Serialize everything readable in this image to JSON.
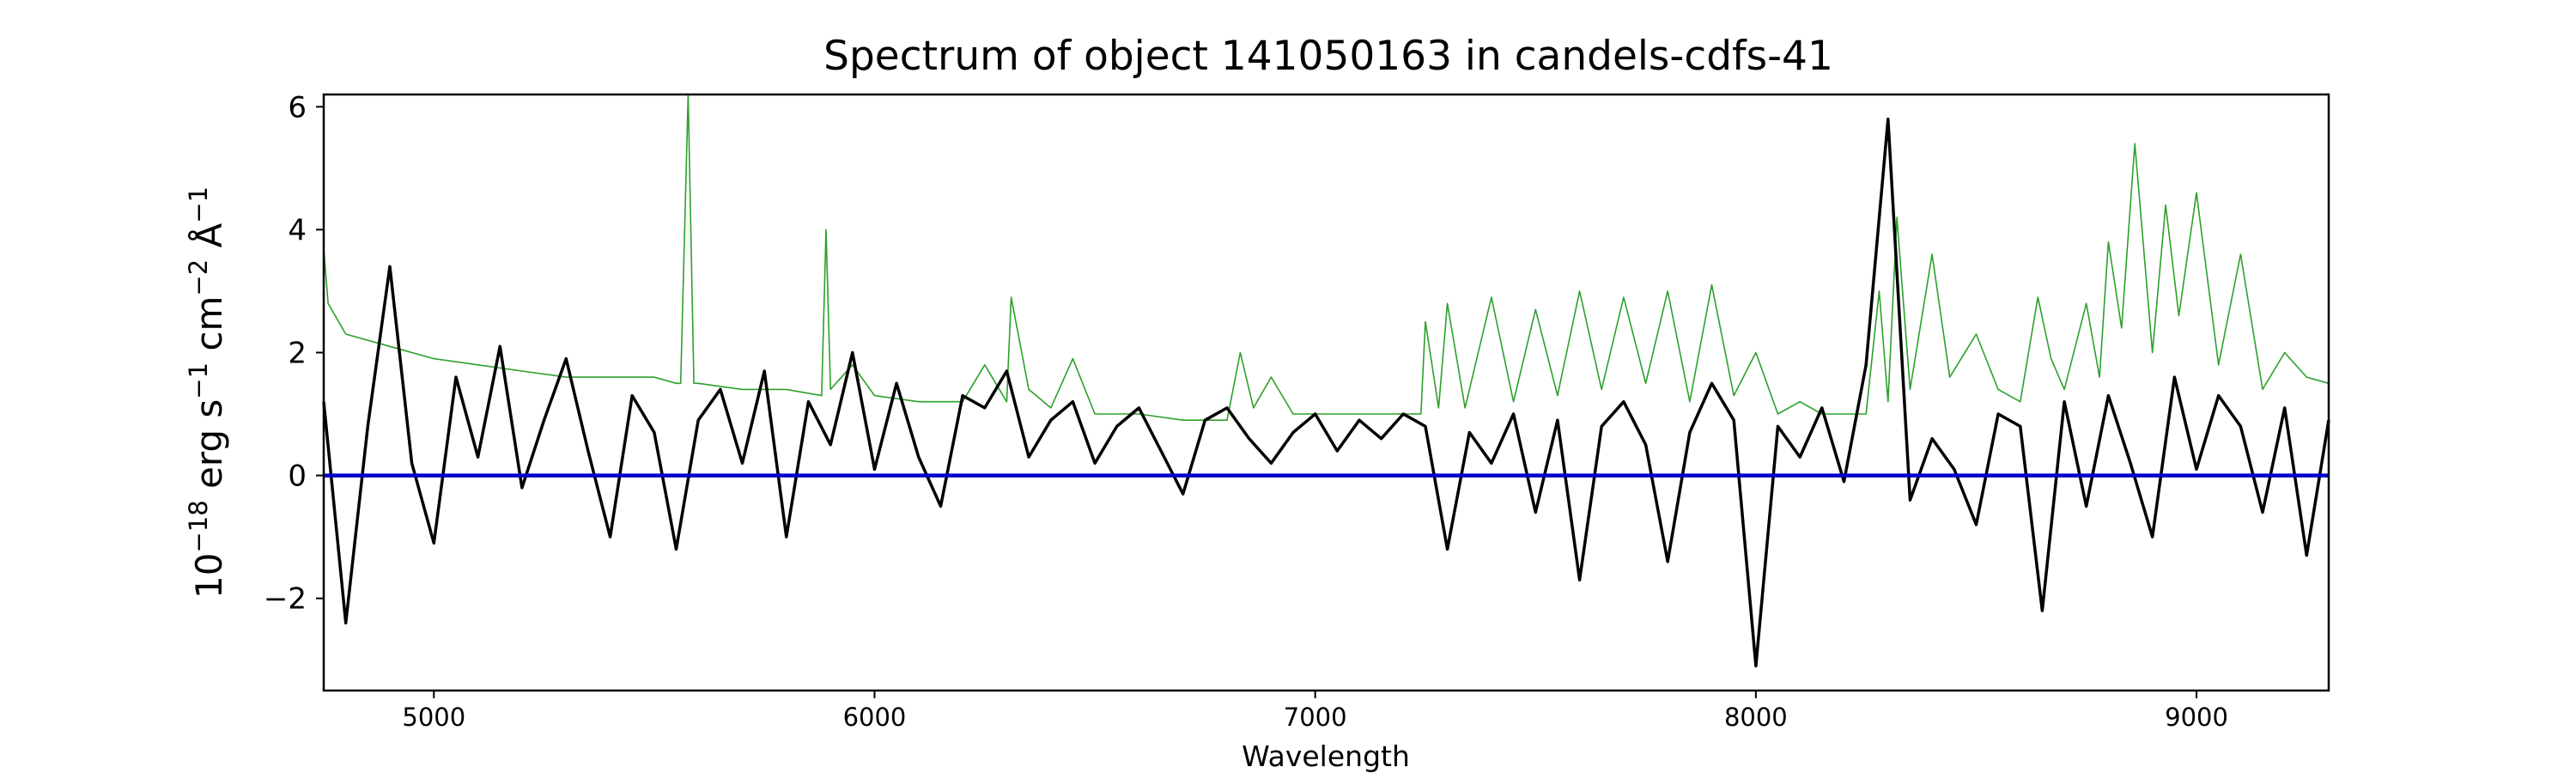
{
  "chart_data": {
    "type": "line",
    "title": "Spectrum of object 141050163 in candels-cdfs-41",
    "xlabel": "Wavelength",
    "ylabel_parts": [
      "10",
      "−18",
      " erg s",
      "−1",
      " cm",
      "−2",
      " Å",
      "−1"
    ],
    "xlim": [
      4750,
      9300
    ],
    "ylim": [
      -3.5,
      6.2
    ],
    "x_ticks": [
      5000,
      6000,
      7000,
      8000,
      9000
    ],
    "y_ticks": [
      -2,
      0,
      2,
      4,
      6
    ],
    "grid": false,
    "colors": {
      "flux": "#000000",
      "sky": "#2ca02c",
      "zero": "#0000cc"
    },
    "series": [
      {
        "role": "flux",
        "x": [
          4750,
          4800,
          4850,
          4900,
          4950,
          5000,
          5050,
          5100,
          5150,
          5200,
          5250,
          5300,
          5350,
          5400,
          5450,
          5500,
          5550,
          5600,
          5650,
          5700,
          5750,
          5800,
          5850,
          5900,
          5950,
          6000,
          6050,
          6100,
          6150,
          6200,
          6250,
          6300,
          6350,
          6400,
          6450,
          6500,
          6550,
          6600,
          6650,
          6700,
          6750,
          6800,
          6850,
          6900,
          6950,
          7000,
          7050,
          7100,
          7150,
          7200,
          7250,
          7300,
          7350,
          7400,
          7450,
          7500,
          7550,
          7600,
          7650,
          7700,
          7750,
          7800,
          7850,
          7900,
          7950,
          8000,
          8050,
          8100,
          8150,
          8200,
          8250,
          8300,
          8350,
          8400,
          8450,
          8500,
          8550,
          8600,
          8650,
          8700,
          8750,
          8800,
          8850,
          8900,
          8950,
          9000,
          9050,
          9100,
          9150,
          9200,
          9250,
          9300
        ],
        "y": [
          1.2,
          -2.4,
          0.8,
          3.4,
          0.2,
          -1.1,
          1.6,
          0.3,
          2.1,
          -0.2,
          0.9,
          1.9,
          0.4,
          -1.0,
          1.3,
          0.7,
          -1.2,
          0.9,
          1.4,
          0.2,
          1.7,
          -1.0,
          1.2,
          0.5,
          2.0,
          0.1,
          1.5,
          0.3,
          -0.5,
          1.3,
          1.1,
          1.7,
          0.3,
          0.9,
          1.2,
          0.2,
          0.8,
          1.1,
          0.4,
          -0.3,
          0.9,
          1.1,
          0.6,
          0.2,
          0.7,
          1.0,
          0.4,
          0.9,
          0.6,
          1.0,
          0.8,
          -1.2,
          0.7,
          0.2,
          1.0,
          -0.6,
          0.9,
          -1.7,
          0.8,
          1.2,
          0.5,
          -1.4,
          0.7,
          1.5,
          0.9,
          -3.1,
          0.8,
          0.3,
          1.1,
          -0.1,
          1.8,
          5.8,
          -0.4,
          0.6,
          0.1,
          -0.8,
          1.0,
          0.8,
          -2.2,
          1.2,
          -0.5,
          1.3,
          0.2,
          -1.0,
          1.6,
          0.1,
          1.3,
          0.8,
          -0.6,
          1.1,
          -1.3,
          0.9
        ]
      },
      {
        "role": "sky",
        "x": [
          4750,
          4760,
          4800,
          4850,
          4900,
          5000,
          5100,
          5200,
          5300,
          5400,
          5500,
          5550,
          5560,
          5577,
          5590,
          5600,
          5700,
          5800,
          5880,
          5890,
          5900,
          5950,
          6000,
          6100,
          6200,
          6250,
          6300,
          6310,
          6350,
          6400,
          6450,
          6500,
          6600,
          6700,
          6800,
          6830,
          6860,
          6900,
          6950,
          7000,
          7100,
          7200,
          7240,
          7250,
          7280,
          7300,
          7340,
          7400,
          7450,
          7500,
          7550,
          7600,
          7650,
          7700,
          7750,
          7800,
          7850,
          7900,
          7950,
          8000,
          8050,
          8100,
          8150,
          8200,
          8250,
          8280,
          8300,
          8320,
          8350,
          8400,
          8440,
          8500,
          8550,
          8600,
          8640,
          8670,
          8700,
          8750,
          8780,
          8800,
          8830,
          8860,
          8900,
          8930,
          8960,
          9000,
          9050,
          9100,
          9150,
          9200,
          9250,
          9300
        ],
        "y": [
          3.7,
          2.8,
          2.3,
          2.2,
          2.1,
          1.9,
          1.8,
          1.7,
          1.6,
          1.6,
          1.6,
          1.5,
          1.5,
          6.2,
          1.5,
          1.5,
          1.4,
          1.4,
          1.3,
          4.0,
          1.4,
          1.8,
          1.3,
          1.2,
          1.2,
          1.8,
          1.2,
          2.9,
          1.4,
          1.1,
          1.9,
          1.0,
          1.0,
          0.9,
          0.9,
          2.0,
          1.1,
          1.6,
          1.0,
          1.0,
          1.0,
          1.0,
          1.0,
          2.5,
          1.1,
          2.8,
          1.1,
          2.9,
          1.2,
          2.7,
          1.3,
          3.0,
          1.4,
          2.9,
          1.5,
          3.0,
          1.2,
          3.1,
          1.3,
          2.0,
          1.0,
          1.2,
          1.0,
          1.0,
          1.0,
          3.0,
          1.2,
          4.2,
          1.4,
          3.6,
          1.6,
          2.3,
          1.4,
          1.2,
          2.9,
          1.9,
          1.4,
          2.8,
          1.6,
          3.8,
          2.4,
          5.4,
          2.0,
          4.4,
          2.6,
          4.6,
          1.8,
          3.6,
          1.4,
          2.0,
          1.6,
          1.5
        ]
      },
      {
        "role": "zero",
        "x": [
          4750,
          9300
        ],
        "y": [
          0,
          0
        ]
      }
    ]
  }
}
